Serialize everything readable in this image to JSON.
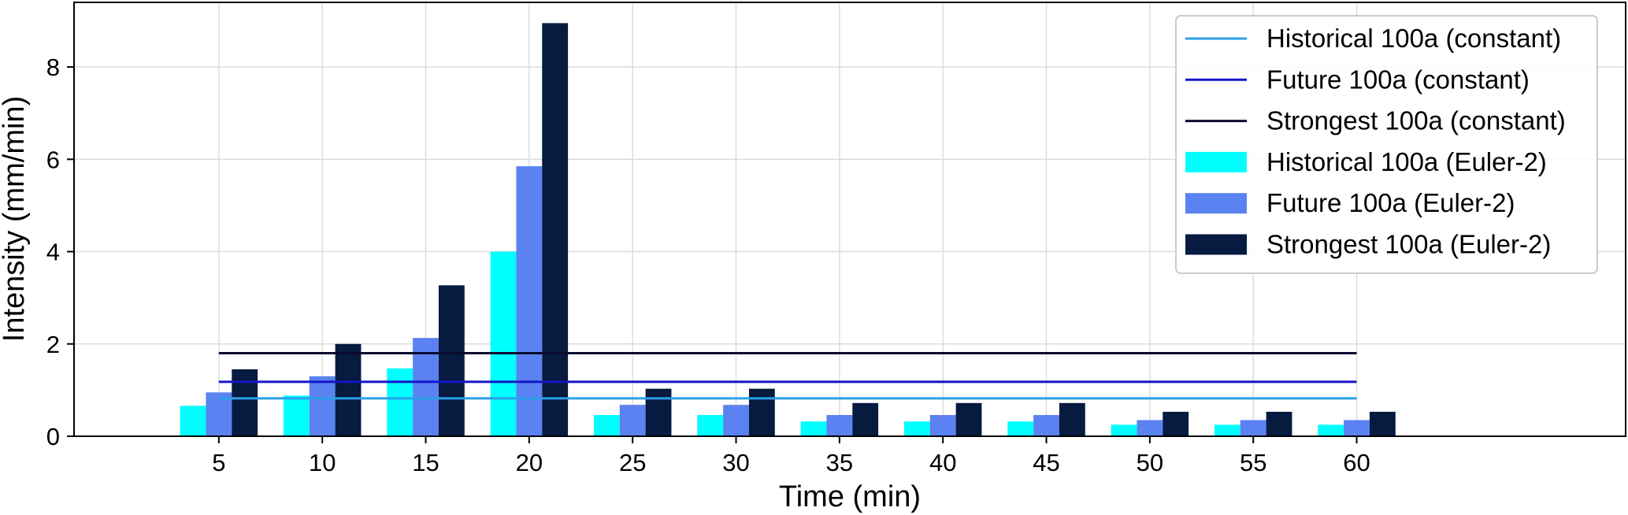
{
  "chart_data": {
    "type": "bar",
    "xlabel": "Time (min)",
    "ylabel": "Intensity (mm/min)",
    "categories": [
      5,
      10,
      15,
      20,
      25,
      30,
      35,
      40,
      45,
      50,
      55,
      60
    ],
    "xlim": [
      -2,
      73
    ],
    "ylim": [
      0,
      9.4
    ],
    "yticks": [
      0,
      2,
      4,
      6,
      8
    ],
    "grid": true,
    "legend_position": "top-right",
    "bar_series": [
      {
        "name": "Historical 100a (Euler-2)",
        "color": "#00FFFF",
        "values": [
          0.66,
          0.88,
          1.47,
          4.0,
          0.46,
          0.46,
          0.32,
          0.32,
          0.32,
          0.25,
          0.25,
          0.25
        ]
      },
      {
        "name": "Future 100a (Euler-2)",
        "color": "#5A82F0",
        "values": [
          0.95,
          1.3,
          2.13,
          5.85,
          0.68,
          0.68,
          0.46,
          0.46,
          0.46,
          0.35,
          0.35,
          0.35
        ]
      },
      {
        "name": "Strongest 100a (Euler-2)",
        "color": "#071A40",
        "values": [
          1.45,
          2.0,
          3.27,
          8.95,
          1.03,
          1.03,
          0.72,
          0.72,
          0.72,
          0.53,
          0.53,
          0.53
        ]
      }
    ],
    "line_series": [
      {
        "name": "Historical 100a (constant)",
        "color": "#2B9FE8",
        "value": 0.82,
        "x_range": [
          5,
          60
        ]
      },
      {
        "name": "Future 100a (constant)",
        "color": "#1515C8",
        "value": 1.18,
        "x_range": [
          5,
          60
        ]
      },
      {
        "name": "Strongest 100a (constant)",
        "color": "#0B0B30",
        "value": 1.8,
        "x_range": [
          5,
          60
        ]
      }
    ]
  }
}
